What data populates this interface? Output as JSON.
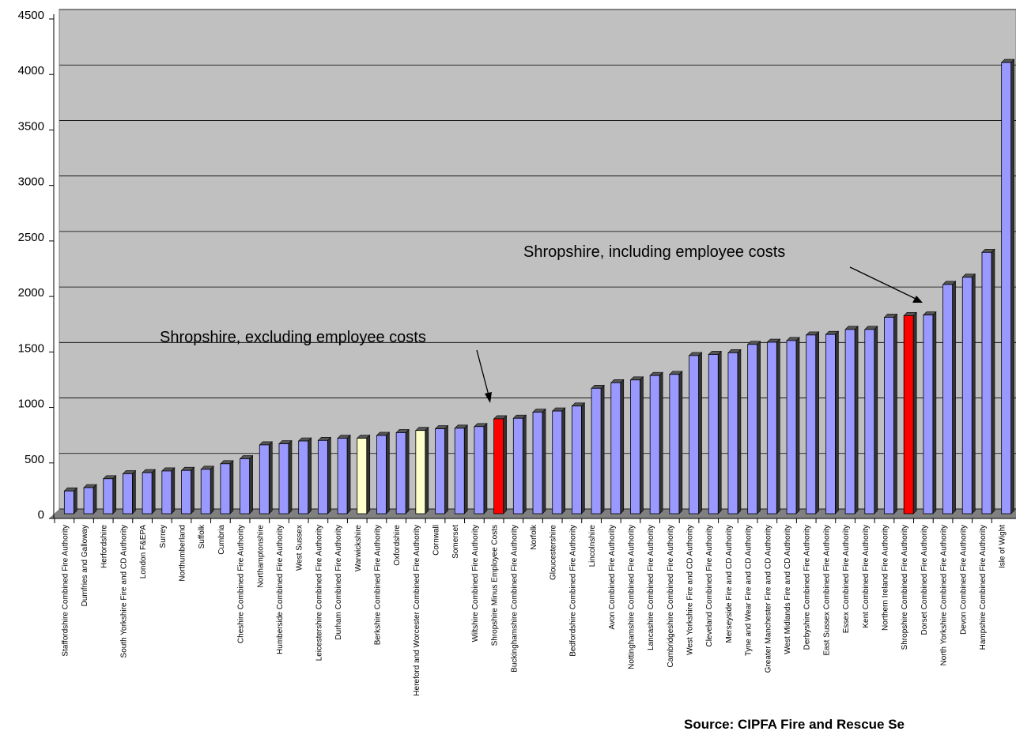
{
  "chart_data": {
    "type": "bar",
    "categories": [
      "Staffordshire Combined Fire Authority",
      "Dumfries and Galloway",
      "Herfordshire",
      "South Yorkshire Fire and CD Authority",
      "London F&EPA",
      "Surrey",
      "Northumberland",
      "Suffolk",
      "Cumbria",
      "Cheshire Combined Fire Authority",
      "Northamptonshire",
      "Humberside Combined Fire Authority",
      "West Sussex",
      "Leicestershire Combined Fire Authority",
      "Durham Combined Fire Authority",
      "Warwickshire",
      "Berkshire Combined Fire Authority",
      "Oxfordshire",
      "Hereford and Worcester Combined Fire Authority",
      "Cornwall",
      "Somerset",
      "Wiltshire Combined Fire Authority",
      "Shropshire Minus Employee Costs",
      "Buckinghamshire Combined Fire Authority",
      "Norfolk",
      "Gloucestershire",
      "Bedfordshire Combined Fire Authority",
      "Lincolnshire",
      "Avon Combined Fire Authority",
      "Nottinghamshire Combined Fire Authority",
      "Lancashire Combined Fire Authority",
      "Cambridgeshire Combined Fire Authority",
      "West Yorkshire Fire and CD Authority",
      "Cleveland Combined Fire Authority",
      "Merseyside Fire and CD Authority",
      "Tyne and Wear Fire and CD Authority",
      "Greater Manchester Fire and CD Authority",
      "West Midlands Fire and CD Authority",
      "Derbyshire Combined Fire Authority",
      "East Sussex Combined Fire Authority",
      "Essex Combined Fire Authority",
      "Kent Combined Fire Authority",
      "Northern Ireland Fire Authority",
      "Shropshire Combined Fire Authority",
      "Dorset Combined Fire Authority",
      "North Yorkshire Combined Fire Authority",
      "Devon Combined Fire Authority",
      "Hampshire Combined Fire Authority",
      "Isle of Wight"
    ],
    "values": [
      205,
      235,
      315,
      360,
      370,
      385,
      390,
      400,
      450,
      495,
      620,
      630,
      655,
      660,
      680,
      680,
      705,
      730,
      750,
      765,
      770,
      785,
      855,
      860,
      915,
      925,
      970,
      1130,
      1180,
      1205,
      1245,
      1255,
      1425,
      1435,
      1450,
      1525,
      1545,
      1560,
      1610,
      1615,
      1660,
      1660,
      1770,
      1785,
      1790,
      2065,
      2130,
      2355,
      4065
    ],
    "colors": [
      "#9999ff",
      "#9999ff",
      "#9999ff",
      "#9999ff",
      "#9999ff",
      "#9999ff",
      "#9999ff",
      "#9999ff",
      "#9999ff",
      "#9999ff",
      "#9999ff",
      "#9999ff",
      "#9999ff",
      "#9999ff",
      "#9999ff",
      "#ffffcc",
      "#9999ff",
      "#9999ff",
      "#ffffcc",
      "#9999ff",
      "#9999ff",
      "#9999ff",
      "#ff0000",
      "#9999ff",
      "#9999ff",
      "#9999ff",
      "#9999ff",
      "#9999ff",
      "#9999ff",
      "#9999ff",
      "#9999ff",
      "#9999ff",
      "#9999ff",
      "#9999ff",
      "#9999ff",
      "#9999ff",
      "#9999ff",
      "#9999ff",
      "#9999ff",
      "#9999ff",
      "#9999ff",
      "#9999ff",
      "#9999ff",
      "#ff0000",
      "#9999ff",
      "#9999ff",
      "#9999ff",
      "#9999ff",
      "#9999ff"
    ],
    "ylim": [
      0,
      4500
    ],
    "yticks": [
      0,
      500,
      1000,
      1500,
      2000,
      2500,
      3000,
      3500,
      4000,
      4500
    ],
    "grid": true,
    "annotations": [
      "Shropshire, excluding employee costs",
      "Shropshire, including employee costs"
    ],
    "source": "Source: CIPFA Fire and Rescue Se"
  }
}
